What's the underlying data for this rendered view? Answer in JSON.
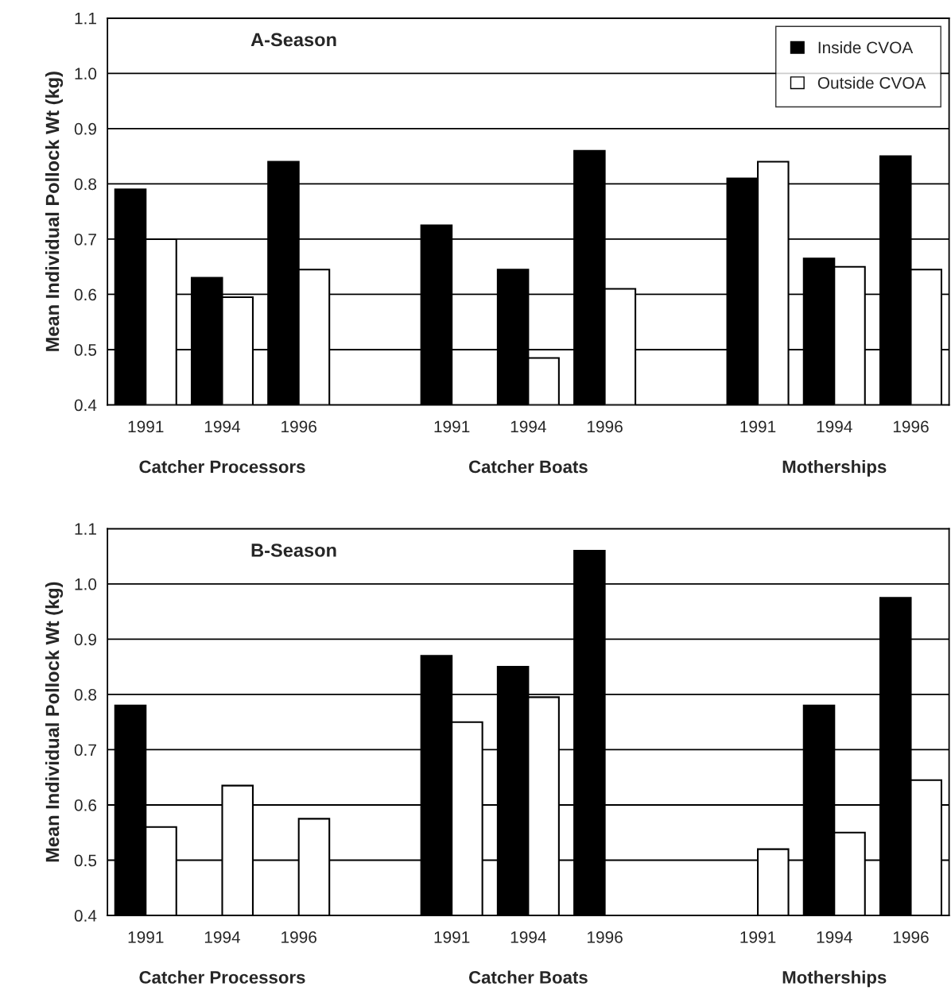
{
  "chart_data": [
    {
      "type": "bar",
      "title": "A-Season",
      "ylabel": "Mean Individual Pollock Wt (kg)",
      "categories": [
        "1991",
        "1994",
        "1996",
        null,
        "1991",
        "1994",
        "1996",
        null,
        "1991",
        "1994",
        "1996"
      ],
      "series": [
        {
          "name": "Inside CVOA",
          "color": "#000000",
          "values": [
            0.79,
            0.63,
            0.84,
            null,
            0.725,
            0.645,
            0.86,
            null,
            0.81,
            0.665,
            0.85
          ]
        },
        {
          "name": "Outside CVOA",
          "color": "#ffffff",
          "values": [
            0.7,
            0.595,
            0.645,
            null,
            null,
            0.485,
            0.61,
            null,
            0.84,
            0.65,
            0.645
          ]
        }
      ],
      "annotations": [
        "Catcher Processors",
        "Catcher Boats",
        "Motherships"
      ],
      "ylim": [
        0.4,
        1.1
      ],
      "yticks": [
        {
          "value": 0.4,
          "label": "0.4"
        },
        {
          "value": 0.5,
          "label": "0.5"
        },
        {
          "value": 0.6,
          "label": "0.6"
        },
        {
          "value": 0.7,
          "label": "0.7"
        },
        {
          "value": 0.8,
          "label": "0.8"
        },
        {
          "value": 0.9,
          "label": "0.9"
        },
        {
          "value": 1.0,
          "label": "1.0"
        },
        {
          "value": 1.1,
          "label": "1.1"
        }
      ],
      "grid": "y",
      "legend": "top right"
    },
    {
      "type": "bar",
      "title": "B-Season",
      "ylabel": "Mean Individual Pollock Wt (kg)",
      "categories": [
        "1991",
        "1994",
        "1996",
        null,
        "1991",
        "1994",
        "1996",
        null,
        "1991",
        "1994",
        "1996"
      ],
      "series": [
        {
          "color": "#000000",
          "values": [
            0.78,
            null,
            null,
            null,
            0.87,
            0.85,
            1.06,
            null,
            null,
            0.78,
            0.975
          ]
        },
        {
          "color": "#ffffff",
          "values": [
            0.56,
            0.635,
            0.575,
            null,
            0.75,
            0.795,
            null,
            null,
            0.52,
            0.55,
            0.645
          ]
        }
      ],
      "annotations": [
        "Catcher Processors",
        "Catcher Boats",
        "Motherships"
      ],
      "ylim": [
        0.4,
        1.1
      ],
      "yticks": [
        {
          "value": 0.4,
          "label": "0.4"
        },
        {
          "value": 0.5,
          "label": "0.5"
        },
        {
          "value": 0.6,
          "label": "0.6"
        },
        {
          "value": 0.7,
          "label": "0.7"
        },
        {
          "value": 0.8,
          "label": "0.8"
        },
        {
          "value": 0.9,
          "label": "0.9"
        },
        {
          "value": 1.0,
          "label": "1.0"
        },
        {
          "value": 1.1,
          "label": "1.1"
        }
      ],
      "grid": "y",
      "legend": false
    }
  ]
}
